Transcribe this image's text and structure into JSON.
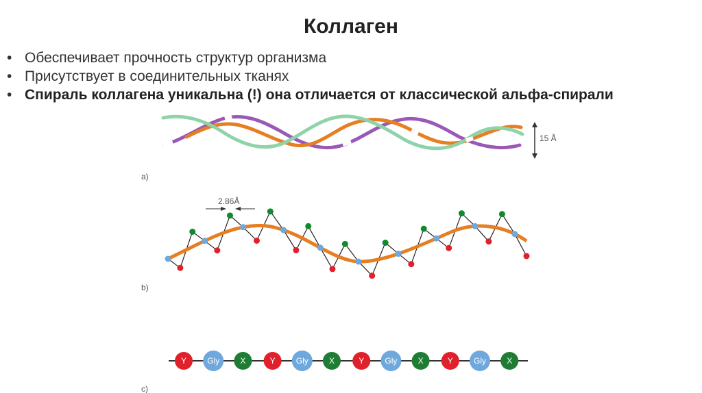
{
  "slide": {
    "title": "Коллаген",
    "bullets": [
      "Обеспечивает прочность структур организма",
      "Присутствует в соединительных тканях",
      "Спираль коллагена уникальна (!) она отличается от классической альфа-спирали"
    ],
    "bullet_symbol": "•"
  },
  "figure": {
    "panel_a": {
      "label": "a)",
      "dimension": "15 Å",
      "strand_colors": [
        "#9b59b6",
        "#e67e22",
        "#8fd3a8"
      ]
    },
    "panel_b": {
      "label": "b)",
      "dimension": "2.86Å",
      "backbone_color": "#e67e22",
      "atom_colors": {
        "green": "#0f8a2e",
        "red": "#e0202a",
        "blue": "#6fa8dc"
      }
    },
    "panel_c": {
      "label": "c)",
      "sequence": [
        "Y",
        "Gly",
        "X",
        "Y",
        "Gly",
        "X",
        "Y",
        "Gly",
        "X",
        "Y",
        "Gly",
        "X"
      ],
      "residue_colors": {
        "Y": "#e0202a",
        "Gly": "#6fa8dc",
        "X": "#1e7d32"
      }
    }
  }
}
